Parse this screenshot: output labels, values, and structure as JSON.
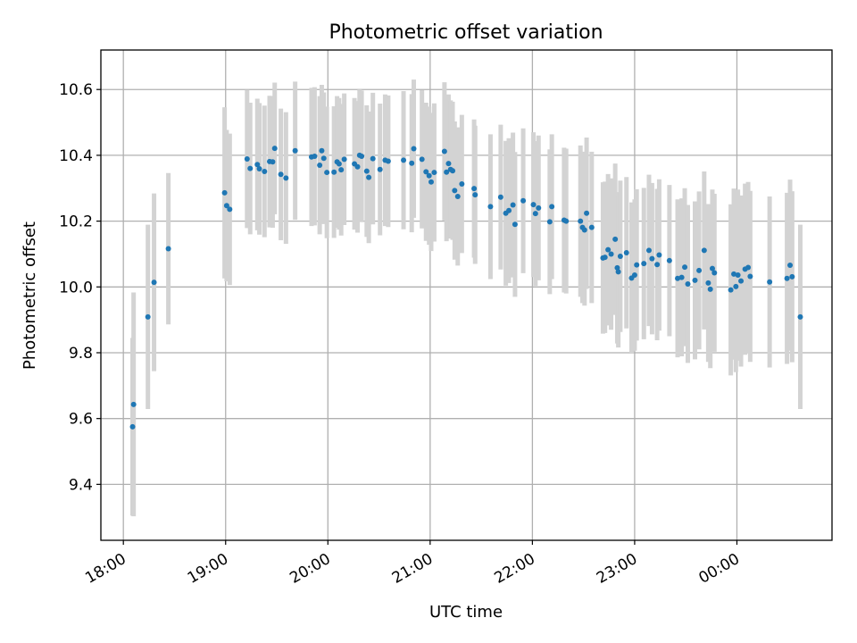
{
  "chart_data": {
    "type": "scatter",
    "title": "Photometric offset variation",
    "xlabel": "UTC time",
    "ylabel": "Photometric offset",
    "x_axis": {
      "unit": "hours since 18:00 UTC",
      "range": [
        -0.22,
        6.93
      ],
      "ticks": [
        {
          "value": 0,
          "label": "18:00"
        },
        {
          "value": 1,
          "label": "19:00"
        },
        {
          "value": 2,
          "label": "20:00"
        },
        {
          "value": 3,
          "label": "21:00"
        },
        {
          "value": 4,
          "label": "22:00"
        },
        {
          "value": 5,
          "label": "23:00"
        },
        {
          "value": 6,
          "label": "00:00"
        }
      ]
    },
    "y_axis": {
      "range": [
        9.23,
        10.72
      ],
      "ticks": [
        {
          "value": 9.4,
          "label": "9.4"
        },
        {
          "value": 9.6,
          "label": "9.6"
        },
        {
          "value": 9.8,
          "label": "9.8"
        },
        {
          "value": 10.0,
          "label": "10.0"
        },
        {
          "value": 10.2,
          "label": "10.2"
        },
        {
          "value": 10.4,
          "label": "10.4"
        },
        {
          "value": 10.6,
          "label": "10.6"
        }
      ]
    },
    "grid": true,
    "colors": {
      "points": "#1f77b4",
      "errorbars": "#d3d3d3"
    },
    "series": [
      {
        "type": "errorbar-scatter",
        "points": [
          [
            0.09,
            9.575,
            0.27
          ],
          [
            0.1,
            9.643,
            0.34
          ],
          [
            0.24,
            9.909,
            0.28
          ],
          [
            0.3,
            10.014,
            0.27
          ],
          [
            0.44,
            10.116,
            0.23
          ],
          [
            0.99,
            10.286,
            0.26
          ],
          [
            1.01,
            10.247,
            0.23
          ],
          [
            1.04,
            10.236,
            0.23
          ],
          [
            1.21,
            10.389,
            0.21
          ],
          [
            1.24,
            10.36,
            0.2
          ],
          [
            1.31,
            10.372,
            0.2
          ],
          [
            1.33,
            10.359,
            0.2
          ],
          [
            1.38,
            10.351,
            0.2
          ],
          [
            1.43,
            10.381,
            0.2
          ],
          [
            1.46,
            10.38,
            0.2
          ],
          [
            1.48,
            10.421,
            0.2
          ],
          [
            1.54,
            10.342,
            0.2
          ],
          [
            1.59,
            10.331,
            0.2
          ],
          [
            1.68,
            10.414,
            0.21
          ],
          [
            1.84,
            10.395,
            0.21
          ],
          [
            1.87,
            10.397,
            0.21
          ],
          [
            1.92,
            10.37,
            0.21
          ],
          [
            1.94,
            10.414,
            0.2
          ],
          [
            1.96,
            10.391,
            0.2
          ],
          [
            1.99,
            10.348,
            0.2
          ],
          [
            2.06,
            10.349,
            0.2
          ],
          [
            2.09,
            10.38,
            0.2
          ],
          [
            2.11,
            10.374,
            0.2
          ],
          [
            2.13,
            10.356,
            0.2
          ],
          [
            2.16,
            10.388,
            0.2
          ],
          [
            2.26,
            10.374,
            0.2
          ],
          [
            2.29,
            10.365,
            0.2
          ],
          [
            2.31,
            10.4,
            0.2
          ],
          [
            2.33,
            10.397,
            0.2
          ],
          [
            2.38,
            10.352,
            0.2
          ],
          [
            2.4,
            10.333,
            0.2
          ],
          [
            2.44,
            10.39,
            0.2
          ],
          [
            2.51,
            10.357,
            0.2
          ],
          [
            2.56,
            10.385,
            0.2
          ],
          [
            2.59,
            10.382,
            0.2
          ],
          [
            2.74,
            10.385,
            0.21
          ],
          [
            2.82,
            10.376,
            0.21
          ],
          [
            2.84,
            10.42,
            0.21
          ],
          [
            2.92,
            10.388,
            0.21
          ],
          [
            2.96,
            10.35,
            0.21
          ],
          [
            2.99,
            10.338,
            0.21
          ],
          [
            3.01,
            10.319,
            0.21
          ],
          [
            3.04,
            10.348,
            0.21
          ],
          [
            3.14,
            10.412,
            0.21
          ],
          [
            3.16,
            10.349,
            0.21
          ],
          [
            3.18,
            10.375,
            0.21
          ],
          [
            3.2,
            10.357,
            0.21
          ],
          [
            3.22,
            10.353,
            0.21
          ],
          [
            3.24,
            10.293,
            0.21
          ],
          [
            3.27,
            10.275,
            0.21
          ],
          [
            3.31,
            10.313,
            0.21
          ],
          [
            3.43,
            10.299,
            0.21
          ],
          [
            3.44,
            10.28,
            0.21
          ],
          [
            3.59,
            10.244,
            0.22
          ],
          [
            3.69,
            10.273,
            0.22
          ],
          [
            3.74,
            10.224,
            0.22
          ],
          [
            3.77,
            10.232,
            0.22
          ],
          [
            3.81,
            10.249,
            0.22
          ],
          [
            3.83,
            10.19,
            0.22
          ],
          [
            3.91,
            10.262,
            0.22
          ],
          [
            4.01,
            10.25,
            0.22
          ],
          [
            4.03,
            10.223,
            0.22
          ],
          [
            4.06,
            10.24,
            0.22
          ],
          [
            4.17,
            10.198,
            0.22
          ],
          [
            4.19,
            10.244,
            0.22
          ],
          [
            4.31,
            10.203,
            0.22
          ],
          [
            4.33,
            10.2,
            0.22
          ],
          [
            4.47,
            10.2,
            0.23
          ],
          [
            4.49,
            10.181,
            0.23
          ],
          [
            4.51,
            10.173,
            0.23
          ],
          [
            4.53,
            10.224,
            0.23
          ],
          [
            4.58,
            10.181,
            0.23
          ],
          [
            4.69,
            10.088,
            0.23
          ],
          [
            4.71,
            10.09,
            0.23
          ],
          [
            4.74,
            10.113,
            0.23
          ],
          [
            4.77,
            10.1,
            0.23
          ],
          [
            4.81,
            10.145,
            0.23
          ],
          [
            4.83,
            10.058,
            0.23
          ],
          [
            4.84,
            10.046,
            0.23
          ],
          [
            4.86,
            10.093,
            0.23
          ],
          [
            4.92,
            10.104,
            0.23
          ],
          [
            4.97,
            10.027,
            0.23
          ],
          [
            5.0,
            10.036,
            0.23
          ],
          [
            5.02,
            10.067,
            0.23
          ],
          [
            5.09,
            10.071,
            0.23
          ],
          [
            5.14,
            10.111,
            0.23
          ],
          [
            5.17,
            10.086,
            0.23
          ],
          [
            5.22,
            10.068,
            0.23
          ],
          [
            5.24,
            10.097,
            0.23
          ],
          [
            5.34,
            10.08,
            0.23
          ],
          [
            5.42,
            10.026,
            0.24
          ],
          [
            5.46,
            10.029,
            0.24
          ],
          [
            5.49,
            10.06,
            0.24
          ],
          [
            5.52,
            10.009,
            0.24
          ],
          [
            5.59,
            10.02,
            0.24
          ],
          [
            5.63,
            10.05,
            0.24
          ],
          [
            5.68,
            10.111,
            0.24
          ],
          [
            5.72,
            10.012,
            0.24
          ],
          [
            5.74,
            9.993,
            0.24
          ],
          [
            5.76,
            10.056,
            0.24
          ],
          [
            5.78,
            10.043,
            0.24
          ],
          [
            5.94,
            9.991,
            0.26
          ],
          [
            5.97,
            10.039,
            0.26
          ],
          [
            5.99,
            10.001,
            0.26
          ],
          [
            6.01,
            10.036,
            0.26
          ],
          [
            6.04,
            10.018,
            0.26
          ],
          [
            6.08,
            10.054,
            0.26
          ],
          [
            6.11,
            10.059,
            0.26
          ],
          [
            6.13,
            10.032,
            0.26
          ],
          [
            6.32,
            10.015,
            0.26
          ],
          [
            6.49,
            10.026,
            0.26
          ],
          [
            6.52,
            10.066,
            0.26
          ],
          [
            6.54,
            10.031,
            0.26
          ],
          [
            6.62,
            9.909,
            0.28
          ]
        ]
      }
    ]
  }
}
